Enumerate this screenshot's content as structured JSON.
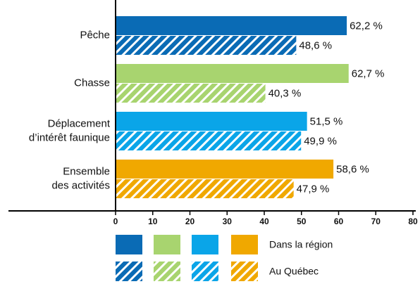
{
  "chart_data": {
    "type": "hbar",
    "categories": [
      [
        "Pêche"
      ],
      [
        "Chasse"
      ],
      [
        "Déplacement",
        "d’intérêt faunique"
      ],
      [
        "Ensemble",
        "des activités"
      ]
    ],
    "colors": [
      "#0a6bb5",
      "#a8d46f",
      "#0aa5e8",
      "#f0a800"
    ],
    "series": [
      {
        "name": "Dans la région",
        "pattern": "solid",
        "values": [
          62.2,
          62.7,
          51.5,
          58.6
        ],
        "value_labels": [
          "62,2 %",
          "62,7 %",
          "51,5 %",
          "58,6 %"
        ]
      },
      {
        "name": "Au Québec",
        "pattern": "hatched",
        "values": [
          48.6,
          40.3,
          49.9,
          47.9
        ],
        "value_labels": [
          "48,6 %",
          "40,3 %",
          "49,9 %",
          "47,9 %"
        ]
      }
    ],
    "xlim": [
      0,
      80
    ],
    "xticks": [
      0,
      10,
      20,
      30,
      40,
      50,
      60,
      70,
      80
    ]
  }
}
